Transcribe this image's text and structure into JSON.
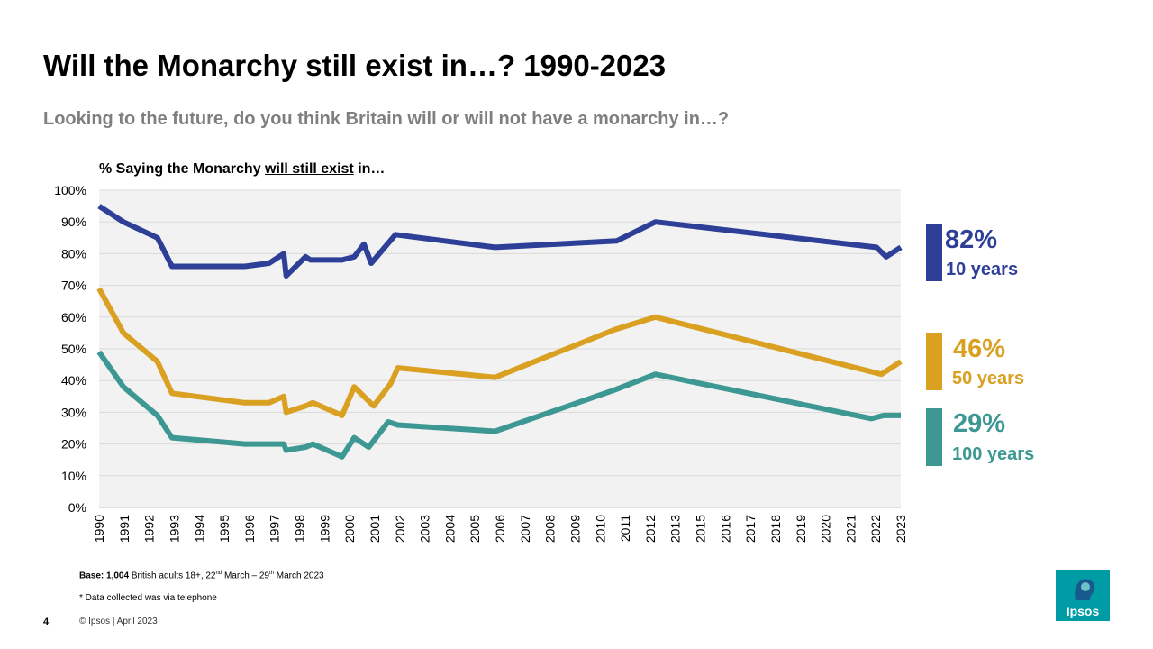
{
  "slide": {
    "title": "Will the Monarchy still exist in…? 1990-2023",
    "subtitle": "Looking to the future, do you think Britain will or will not have a monarchy in…?",
    "chart_label_prefix": "% Saying the Monarchy ",
    "chart_label_underlined": "will still exist",
    "chart_label_suffix": " in…",
    "base_bold": "Base: 1,004",
    "base_text": " British adults 18+, 22",
    "base_sup1": "nd",
    "base_text2": " March – 29",
    "base_sup2": "th",
    "base_text3": " March 2023",
    "note": "* Data collected was via telephone",
    "page_number": "4",
    "copyright": "© Ipsos | April 2023",
    "logo_text": "Ipsos"
  },
  "legend": [
    {
      "value": "82%",
      "label": "10 years",
      "color": "#2e3f97"
    },
    {
      "value": "46%",
      "label": "50 years",
      "color": "#d9a021"
    },
    {
      "value": "29%",
      "label": "100 years",
      "color": "#3d9894"
    }
  ],
  "chart_data": {
    "type": "line",
    "title": "% Saying the Monarchy will still exist in…",
    "xlabel": "",
    "ylabel": "",
    "ylim": [
      0,
      100
    ],
    "yticks": [
      "0%",
      "10%",
      "20%",
      "30%",
      "40%",
      "50%",
      "60%",
      "70%",
      "80%",
      "90%",
      "100%"
    ],
    "categories": [
      "1990",
      "1991",
      "1992",
      "1993",
      "1994",
      "1995",
      "1996",
      "1997",
      "1998",
      "1999",
      "2000",
      "2001",
      "2002",
      "2003",
      "2004",
      "2005",
      "2006",
      "2007",
      "2008",
      "2009",
      "2010",
      "2011",
      "2012",
      "2013",
      "2015",
      "2016",
      "2017",
      "2018",
      "2019",
      "2020",
      "2021",
      "2022",
      "2023"
    ],
    "xlim": [
      1990,
      2023
    ],
    "grid": true,
    "series": [
      {
        "name": "10 years",
        "color": "#2e3f97",
        "x": [
          1990,
          1991,
          1992.4,
          1993,
          1996,
          1997,
          1997.6,
          1997.7,
          1998.5,
          1998.7,
          2000,
          2000.5,
          2000.9,
          2001.2,
          2002.2,
          2006.3,
          2011.3,
          2012.9,
          2022,
          2022.4,
          2023
        ],
        "values": [
          95,
          90,
          85,
          76,
          76,
          77,
          80,
          73,
          79,
          78,
          78,
          79,
          83,
          77,
          86,
          82,
          84,
          90,
          82,
          79,
          82
        ]
      },
      {
        "name": "50 years",
        "color": "#d9a021",
        "x": [
          1990,
          1991,
          1992.4,
          1993,
          1996,
          1997,
          1997.6,
          1997.7,
          1998.5,
          1998.8,
          2000,
          2000.5,
          2000.9,
          2001.3,
          2002,
          2002.3,
          2006.3,
          2011.2,
          2012.9,
          2022.2,
          2023
        ],
        "values": [
          69,
          55,
          46,
          36,
          33,
          33,
          35,
          30,
          32,
          33,
          29,
          38,
          35,
          32,
          39,
          44,
          41,
          56,
          60,
          42,
          46
        ]
      },
      {
        "name": "100 years",
        "color": "#3d9894",
        "x": [
          1990,
          1991,
          1992.4,
          1993,
          1996,
          1997,
          1997.6,
          1997.7,
          1998.5,
          1998.8,
          2000,
          2000.5,
          2001.1,
          2001.9,
          2002.3,
          2006.3,
          2011.2,
          2012.9,
          2021.8,
          2022.3,
          2023
        ],
        "values": [
          49,
          38,
          29,
          22,
          20,
          20,
          20,
          18,
          19,
          20,
          16,
          22,
          19,
          27,
          26,
          24,
          37,
          42,
          28,
          29,
          29
        ]
      }
    ]
  }
}
